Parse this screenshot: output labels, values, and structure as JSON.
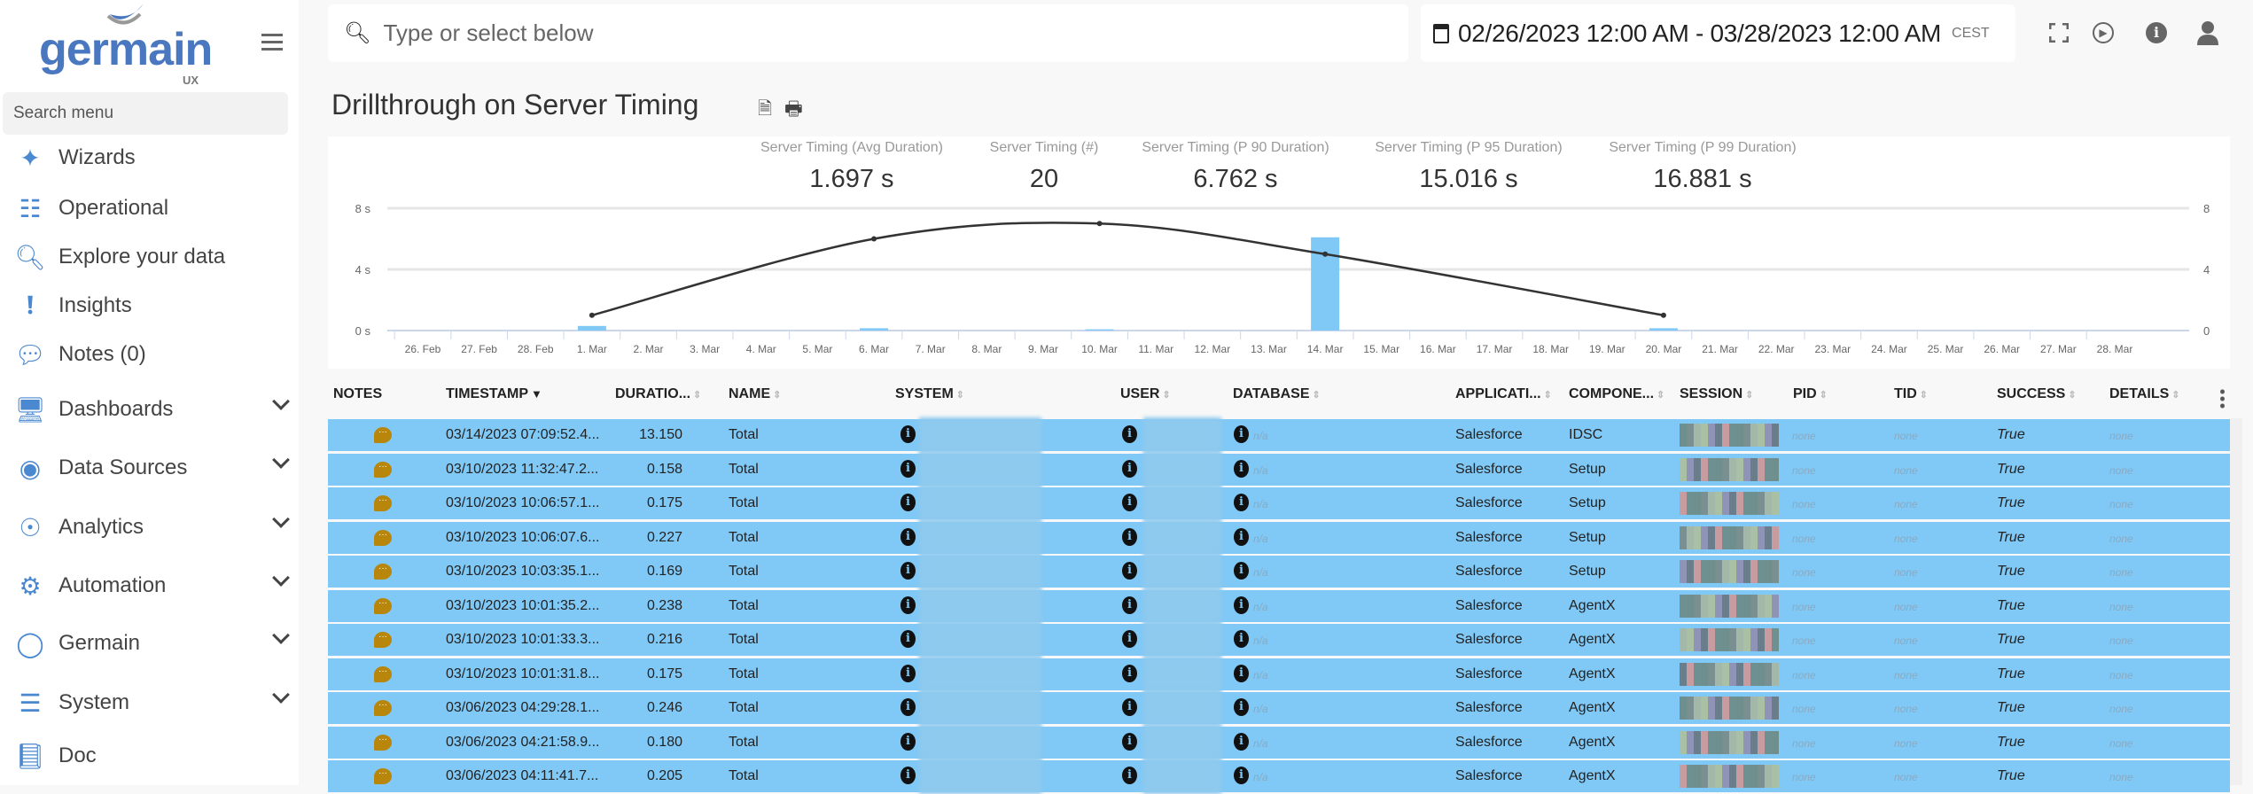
{
  "sidebar": {
    "logo_text": "germain",
    "logo_sub": "UX",
    "search_placeholder": "Search menu",
    "items": [
      {
        "label": "Wizards",
        "icon": "magic-wand-icon"
      },
      {
        "label": "Operational",
        "icon": "sitemap-icon"
      },
      {
        "label": "Explore your data",
        "icon": "search-icon"
      },
      {
        "label": "Insights",
        "icon": "exclamation-circle-icon"
      },
      {
        "label": "Notes (0)",
        "icon": "comment-dots-icon"
      },
      {
        "label": "Dashboards",
        "icon": "dashboard-monitor-icon",
        "expandable": true
      },
      {
        "label": "Data Sources",
        "icon": "data-source-icon",
        "expandable": true
      },
      {
        "label": "Analytics",
        "icon": "analytics-icon",
        "expandable": true
      },
      {
        "label": "Automation",
        "icon": "gear-icon",
        "expandable": true
      },
      {
        "label": "Germain",
        "icon": "dotted-circle-icon",
        "expandable": true
      },
      {
        "label": "System",
        "icon": "sliders-icon",
        "expandable": true
      },
      {
        "label": "Doc",
        "icon": "book-icon"
      }
    ]
  },
  "topbar": {
    "search_placeholder": "Type or select below",
    "date_range": "02/26/2023 12:00 AM - 03/28/2023 12:00 AM",
    "timezone": "CEST"
  },
  "page": {
    "title": "Drillthrough on Server Timing"
  },
  "kpis": [
    {
      "label": "Server Timing (Avg Duration)",
      "value": "1.697 s"
    },
    {
      "label": "Server Timing (#)",
      "value": "20"
    },
    {
      "label": "Server Timing (P 90 Duration)",
      "value": "6.762 s"
    },
    {
      "label": "Server Timing (P 95 Duration)",
      "value": "15.016 s"
    },
    {
      "label": "Server Timing (P 99 Duration)",
      "value": "16.881 s"
    }
  ],
  "chart_data": {
    "type": "bar+line",
    "categories": [
      "26. Feb",
      "27. Feb",
      "28. Feb",
      "1. Mar",
      "2. Mar",
      "3. Mar",
      "4. Mar",
      "5. Mar",
      "6. Mar",
      "7. Mar",
      "8. Mar",
      "9. Mar",
      "10. Mar",
      "11. Mar",
      "12. Mar",
      "13. Mar",
      "14. Mar",
      "15. Mar",
      "16. Mar",
      "17. Mar",
      "18. Mar",
      "19. Mar",
      "20. Mar",
      "21. Mar",
      "22. Mar",
      "23. Mar",
      "24. Mar",
      "25. Mar",
      "26. Mar",
      "27. Mar",
      "28. Mar"
    ],
    "left_axis": {
      "ticks": [
        "0 s",
        "4 s",
        "8 s"
      ],
      "range": [
        0,
        8
      ]
    },
    "right_axis": {
      "ticks": [
        "0",
        "4",
        "8"
      ],
      "range": [
        0,
        8
      ]
    },
    "bars": [
      {
        "x": "1. Mar",
        "y": 0.3
      },
      {
        "x": "6. Mar",
        "y": 0.15
      },
      {
        "x": "10. Mar",
        "y": 0.08
      },
      {
        "x": "14. Mar",
        "y": 6.1
      },
      {
        "x": "20. Mar",
        "y": 0.15
      }
    ],
    "line": [
      {
        "x": "1. Mar",
        "y": 1
      },
      {
        "x": "6. Mar",
        "y": 6
      },
      {
        "x": "10. Mar",
        "y": 7
      },
      {
        "x": "14. Mar",
        "y": 5
      },
      {
        "x": "20. Mar",
        "y": 1
      }
    ],
    "bar_color": "#80c9f6",
    "line_color": "#333333",
    "grid": true
  },
  "table": {
    "columns": [
      "NOTES",
      "TIMESTAMP",
      "DURATIO...",
      "NAME",
      "SYSTEM",
      "USER",
      "DATABASE",
      "APPLICATI...",
      "COMPONE...",
      "SESSION",
      "PID",
      "TID",
      "SUCCESS",
      "DETAILS"
    ],
    "sorted_column": "TIMESTAMP",
    "row_color": "#80c9f6",
    "rows": [
      {
        "timestamp": "03/14/2023 07:09:52.4...",
        "duration": "13.150",
        "name": "Total",
        "database": "n/a",
        "application": "Salesforce",
        "component": "IDSC",
        "pid": "none",
        "tid": "none",
        "success": "True",
        "details": "none"
      },
      {
        "timestamp": "03/10/2023 11:32:47.2...",
        "duration": "0.158",
        "name": "Total",
        "database": "n/a",
        "application": "Salesforce",
        "component": "Setup",
        "pid": "none",
        "tid": "none",
        "success": "True",
        "details": "none"
      },
      {
        "timestamp": "03/10/2023 10:06:57.1...",
        "duration": "0.175",
        "name": "Total",
        "database": "n/a",
        "application": "Salesforce",
        "component": "Setup",
        "pid": "none",
        "tid": "none",
        "success": "True",
        "details": "none"
      },
      {
        "timestamp": "03/10/2023 10:06:07.6...",
        "duration": "0.227",
        "name": "Total",
        "database": "n/a",
        "application": "Salesforce",
        "component": "Setup",
        "pid": "none",
        "tid": "none",
        "success": "True",
        "details": "none"
      },
      {
        "timestamp": "03/10/2023 10:03:35.1...",
        "duration": "0.169",
        "name": "Total",
        "database": "n/a",
        "application": "Salesforce",
        "component": "Setup",
        "pid": "none",
        "tid": "none",
        "success": "True",
        "details": "none"
      },
      {
        "timestamp": "03/10/2023 10:01:35.2...",
        "duration": "0.238",
        "name": "Total",
        "database": "n/a",
        "application": "Salesforce",
        "component": "AgentX",
        "pid": "none",
        "tid": "none",
        "success": "True",
        "details": "none"
      },
      {
        "timestamp": "03/10/2023 10:01:33.3...",
        "duration": "0.216",
        "name": "Total",
        "database": "n/a",
        "application": "Salesforce",
        "component": "AgentX",
        "pid": "none",
        "tid": "none",
        "success": "True",
        "details": "none"
      },
      {
        "timestamp": "03/10/2023 10:01:31.8...",
        "duration": "0.175",
        "name": "Total",
        "database": "n/a",
        "application": "Salesforce",
        "component": "AgentX",
        "pid": "none",
        "tid": "none",
        "success": "True",
        "details": "none"
      },
      {
        "timestamp": "03/06/2023 04:29:28.1...",
        "duration": "0.246",
        "name": "Total",
        "database": "n/a",
        "application": "Salesforce",
        "component": "AgentX",
        "pid": "none",
        "tid": "none",
        "success": "True",
        "details": "none"
      },
      {
        "timestamp": "03/06/2023 04:21:58.9...",
        "duration": "0.180",
        "name": "Total",
        "database": "n/a",
        "application": "Salesforce",
        "component": "AgentX",
        "pid": "none",
        "tid": "none",
        "success": "True",
        "details": "none"
      },
      {
        "timestamp": "03/06/2023 04:11:41.7...",
        "duration": "0.205",
        "name": "Total",
        "database": "n/a",
        "application": "Salesforce",
        "component": "AgentX",
        "pid": "none",
        "tid": "none",
        "success": "True",
        "details": "none"
      }
    ]
  }
}
